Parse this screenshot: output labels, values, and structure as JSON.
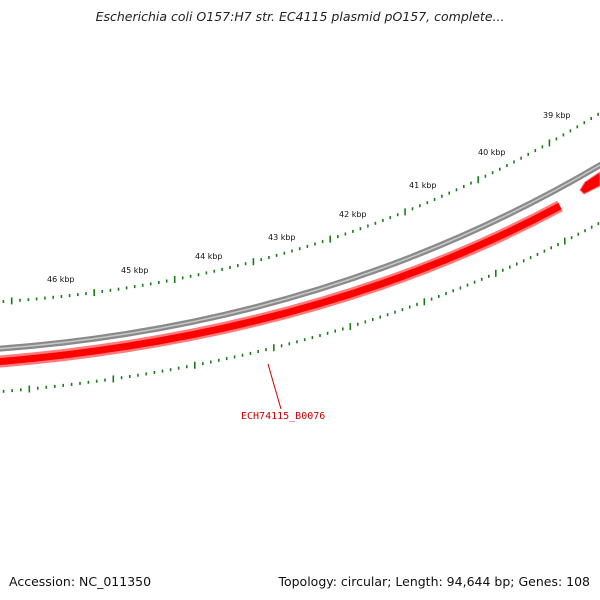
{
  "map": {
    "title": "Escherichia coli O157:H7 str. EC4115 plasmid pO157, complete...",
    "accession": "Accession: NC_011350",
    "summary": "Topology: circular; Length: 94,644 bp; Genes: 108",
    "tick_labels": [
      "39 kbp",
      "40 kbp",
      "41 kbp",
      "42 kbp",
      "43 kbp",
      "44 kbp",
      "45 kbp",
      "46 kbp"
    ],
    "gene_label": "ECH74115_B0076",
    "colors": {
      "backbone": "#888888",
      "gene": "#ff0000",
      "gene_light": "#ff7a7a",
      "gene_label": "#cc0000",
      "ticks": "#1a7a1a"
    }
  }
}
